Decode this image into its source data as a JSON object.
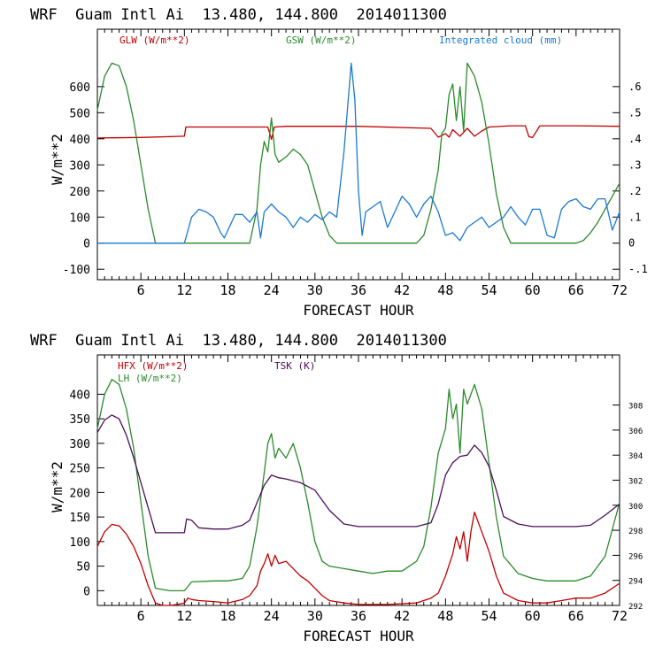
{
  "chart_data": [
    {
      "type": "line",
      "title": "WRF  Guam Intl Ai  13.480, 144.800  2014011300",
      "xlabel": "FORECAST HOUR",
      "ylabel": "W/m**2",
      "xlim": [
        0,
        72
      ],
      "ylim": [
        -140,
        820
      ],
      "y2lim": [
        -0.14,
        0.82
      ],
      "xticks": [
        6,
        12,
        18,
        24,
        30,
        36,
        42,
        48,
        54,
        60,
        66,
        72
      ],
      "yticks": [
        -100,
        0,
        100,
        200,
        300,
        400,
        500,
        600
      ],
      "y2ticks": [
        -0.1,
        0,
        0.1,
        0.2,
        0.3,
        0.4,
        0.5,
        0.6
      ],
      "y2ticklabels": [
        "-.1",
        "0",
        ".1",
        ".2",
        ".3",
        ".4",
        ".5",
        ".6"
      ],
      "series": [
        {
          "name": "GLW (W/m**2)",
          "axis": "left",
          "color": "#c00000",
          "x": [
            0,
            6,
            12,
            12.2,
            18,
            23.5,
            24,
            24.4,
            26,
            36,
            46,
            47,
            48,
            48.5,
            49,
            50,
            51,
            52,
            53,
            54,
            57,
            59,
            59.5,
            60,
            61,
            62,
            66,
            72
          ],
          "y": [
            403,
            405,
            410,
            445,
            445,
            445,
            398,
            445,
            448,
            448,
            440,
            406,
            420,
            406,
            435,
            410,
            440,
            410,
            430,
            445,
            450,
            450,
            408,
            405,
            450,
            450,
            450,
            448
          ]
        },
        {
          "name": "GSW (W/m**2)",
          "axis": "left",
          "color": "#2a8a2a",
          "x": [
            0,
            1,
            2,
            3,
            4,
            5,
            6,
            7,
            8,
            21,
            22,
            22.5,
            23,
            23.5,
            24,
            24.5,
            25,
            26,
            27,
            28,
            29,
            30,
            31,
            32,
            33,
            44,
            45,
            46,
            47,
            47.5,
            48,
            48.5,
            49,
            49.5,
            50,
            50.5,
            51,
            52,
            53,
            54,
            55,
            56,
            57,
            66,
            67,
            68,
            69,
            70,
            71,
            72
          ],
          "y": [
            510,
            640,
            690,
            680,
            600,
            470,
            300,
            130,
            0,
            0,
            130,
            300,
            390,
            350,
            480,
            340,
            310,
            330,
            360,
            340,
            300,
            200,
            100,
            30,
            0,
            0,
            30,
            130,
            280,
            420,
            440,
            570,
            610,
            470,
            600,
            430,
            690,
            640,
            540,
            380,
            190,
            60,
            0,
            0,
            10,
            40,
            80,
            130,
            180,
            230
          ]
        },
        {
          "name": "Integrated cloud (mm)",
          "axis": "right",
          "color": "#1a7ad0",
          "x": [
            0,
            12,
            12.5,
            13,
            14,
            15,
            16,
            17,
            17.5,
            18,
            19,
            20,
            21,
            22,
            22.5,
            23,
            24,
            25,
            26,
            27,
            28,
            29,
            30,
            31,
            32,
            33,
            34,
            35,
            35.5,
            36,
            36.5,
            37,
            38,
            39,
            40,
            41,
            42,
            43,
            44,
            45,
            46,
            47,
            48,
            49,
            50,
            51,
            52,
            53,
            54,
            55,
            56,
            57,
            58,
            59,
            60,
            61,
            62,
            63,
            64,
            65,
            66,
            67,
            68,
            69,
            70,
            71,
            72
          ],
          "y": [
            0,
            0,
            0.05,
            0.1,
            0.13,
            0.12,
            0.1,
            0.04,
            0.02,
            0.05,
            0.11,
            0.11,
            0.08,
            0.12,
            0.02,
            0.12,
            0.15,
            0.12,
            0.1,
            0.06,
            0.1,
            0.08,
            0.11,
            0.09,
            0.12,
            0.1,
            0.35,
            0.69,
            0.55,
            0.2,
            0.03,
            0.12,
            0.14,
            0.16,
            0.06,
            0.12,
            0.18,
            0.15,
            0.1,
            0.15,
            0.18,
            0.12,
            0.03,
            0.04,
            0.01,
            0.06,
            0.08,
            0.1,
            0.06,
            0.08,
            0.1,
            0.14,
            0.1,
            0.07,
            0.13,
            0.13,
            0.03,
            0.02,
            0.13,
            0.16,
            0.17,
            0.14,
            0.13,
            0.17,
            0.17,
            0.05,
            0.12
          ]
        }
      ]
    },
    {
      "type": "line",
      "title": "WRF  Guam Intl Ai  13.480, 144.800  2014011300",
      "xlabel": "FORECAST HOUR",
      "ylabel": "W/m**2",
      "xlim": [
        0,
        72
      ],
      "ylim": [
        -30,
        480
      ],
      "y2lim": [
        292,
        312
      ],
      "xticks": [
        6,
        12,
        18,
        24,
        30,
        36,
        42,
        48,
        54,
        60,
        66,
        72
      ],
      "yticks": [
        0,
        50,
        100,
        150,
        200,
        250,
        300,
        350,
        400
      ],
      "y2ticks": [
        292,
        294,
        296,
        298,
        300,
        302,
        304,
        306,
        308
      ],
      "y2ticklabels": [
        "292",
        "294",
        "296",
        "298",
        "300",
        "302",
        "304",
        "306",
        "308"
      ],
      "series": [
        {
          "name": "HFX (W/m**2)",
          "axis": "left",
          "color": "#c00000",
          "x": [
            0,
            1,
            2,
            3,
            4,
            5,
            6,
            7,
            8,
            9,
            10,
            11,
            12,
            12.5,
            13,
            14,
            16,
            18,
            20,
            21,
            22,
            22.5,
            23,
            23.5,
            24,
            24.5,
            25,
            26,
            27,
            28,
            29,
            30,
            31,
            32,
            34,
            36,
            40,
            44,
            46,
            47,
            48,
            49,
            49.5,
            50,
            50.5,
            51,
            51.5,
            52,
            53,
            54,
            55,
            56,
            58,
            60,
            62,
            64,
            66,
            68,
            70,
            72
          ],
          "y": [
            90,
            120,
            135,
            132,
            115,
            90,
            55,
            10,
            -25,
            -30,
            -30,
            -28,
            -25,
            -15,
            -18,
            -20,
            -22,
            -25,
            -18,
            -10,
            10,
            40,
            55,
            75,
            50,
            72,
            55,
            60,
            45,
            30,
            20,
            5,
            -10,
            -20,
            -25,
            -28,
            -28,
            -25,
            -15,
            -5,
            30,
            75,
            110,
            85,
            120,
            60,
            120,
            160,
            120,
            80,
            30,
            -5,
            -20,
            -25,
            -25,
            -20,
            -15,
            -15,
            -5,
            15
          ]
        },
        {
          "name": "LH (W/m**2)",
          "axis": "left",
          "color": "#2a8a2a",
          "x": [
            0,
            1,
            2,
            3,
            4,
            5,
            6,
            7,
            8,
            10,
            12,
            13,
            16,
            18,
            20,
            21,
            22,
            23,
            23.5,
            24,
            24.5,
            25,
            26,
            27,
            28,
            29,
            30,
            31,
            32,
            34,
            36,
            38,
            40,
            42,
            44,
            45,
            46,
            47,
            48,
            48.5,
            49,
            49.5,
            50,
            50.5,
            51,
            52,
            53,
            54,
            55,
            56,
            58,
            60,
            62,
            66,
            68,
            70,
            72
          ],
          "y": [
            330,
            400,
            430,
            420,
            370,
            290,
            180,
            70,
            5,
            0,
            0,
            18,
            20,
            20,
            25,
            50,
            130,
            240,
            300,
            320,
            270,
            290,
            270,
            300,
            250,
            180,
            100,
            60,
            50,
            45,
            40,
            35,
            40,
            40,
            60,
            90,
            170,
            280,
            330,
            410,
            350,
            380,
            280,
            410,
            380,
            420,
            370,
            260,
            150,
            70,
            35,
            25,
            20,
            20,
            30,
            70,
            180
          ]
        },
        {
          "name": "TSK (K)",
          "axis": "right",
          "color": "#4b0f5a",
          "x": [
            0,
            1,
            2,
            3,
            4,
            5,
            6,
            7,
            8,
            10,
            12,
            12.3,
            13,
            14,
            16,
            18,
            20,
            21,
            22,
            23,
            24,
            25,
            26,
            28,
            30,
            32,
            34,
            36,
            40,
            44,
            46,
            47,
            48,
            49,
            50,
            51,
            52,
            53,
            54,
            55,
            56,
            58,
            60,
            62,
            66,
            68,
            70,
            72
          ],
          "y": [
            305.8,
            306.8,
            307.2,
            306.9,
            305.6,
            303.8,
            301.8,
            299.8,
            297.8,
            297.8,
            297.8,
            298.9,
            298.8,
            298.2,
            298.1,
            298.1,
            298.4,
            298.8,
            300.2,
            301.6,
            302.4,
            302.2,
            302.1,
            301.8,
            301.2,
            299.6,
            298.5,
            298.3,
            298.3,
            298.3,
            298.6,
            300.1,
            302.4,
            303.4,
            303.9,
            304.0,
            304.8,
            304.2,
            303.1,
            301.2,
            299.1,
            298.5,
            298.3,
            298.3,
            298.3,
            298.4,
            299.2,
            300.1
          ]
        }
      ]
    }
  ]
}
